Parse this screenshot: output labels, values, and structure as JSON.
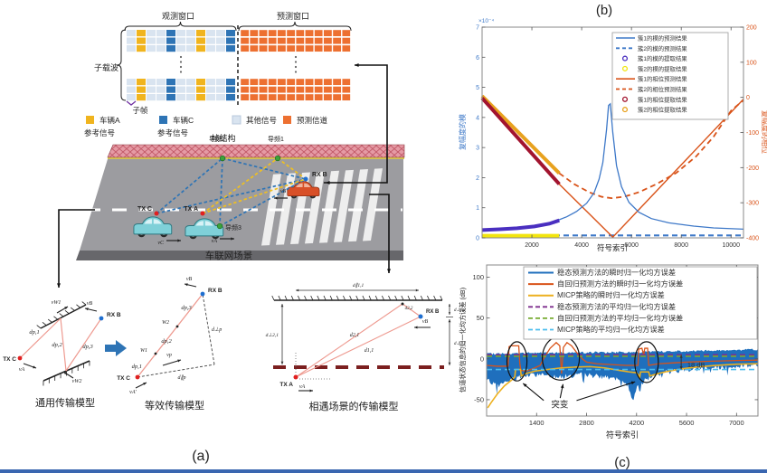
{
  "panel_a": {
    "label": "(a)",
    "frame": {
      "obs_window": "观测窗口",
      "pred_window": "预测窗口",
      "subcarrier": "子载波",
      "subframe": "子帧",
      "frame_structure": "帧结构",
      "obs_pattern": [
        "other",
        "A",
        "other",
        "other",
        "C",
        "other",
        "other",
        "A",
        "other",
        "other",
        "C"
      ],
      "pred_cols": 12,
      "colors": {
        "A": "#F0B41E",
        "C": "#2E74B5",
        "other": "#D9E4F0",
        "pred": "#ED7031"
      }
    },
    "legend": [
      {
        "text": "车辆A",
        "text2": "参考信号",
        "color": "#F0B41E"
      },
      {
        "text": "车辆C",
        "text2": "参考信号",
        "color": "#2E74B5"
      },
      {
        "text": "其他信号",
        "text2": "",
        "color": "#D9E4F0"
      },
      {
        "text": "预测信道",
        "text2": "",
        "color": "#ED7031"
      }
    ],
    "scene": {
      "caption": "车联网场景",
      "pilot1": "导频1",
      "pilot2": "导频2",
      "pilot3": "导频3",
      "tx_c": "TX C",
      "tx_a": "TX A",
      "rx_b": "RX B",
      "v_a": "vA",
      "v_b": "vB",
      "v_c": "vC"
    },
    "model_general": {
      "caption": "通用传输模型",
      "tx": "TX C",
      "rx": "RX B",
      "d1": "dp,1",
      "d2": "dp,2",
      "d3": "dp,3",
      "va": "vA",
      "vb": "vB",
      "vw1": "vW1",
      "vw2": "vW2"
    },
    "model_equiv": {
      "caption": "等效传输模型",
      "tx": "TX C",
      "rx": "RX B",
      "w1": "W1",
      "w2": "W2",
      "d1": "dp,1",
      "d2": "dp,2",
      "d3": "dp,3",
      "vp": "vp",
      "va": "vA′",
      "vb": "vB",
      "dpar": "d∥p",
      "dperp": "d⊥p"
    },
    "model_encounter": {
      "caption": "相遇场景的传输模型",
      "tx": "TX A",
      "rx": "RX B",
      "va": "vA",
      "vb": "vB",
      "dpar11": "d∥1,1",
      "dperp21": "d⊥2,1",
      "dperp11": "d⊥1,1",
      "dperp12": "d⊥1,2",
      "d21": "d2,1",
      "d11": "d1,1",
      "d22": "d2,2"
    }
  },
  "panel_b": {
    "label": "(b)"
  },
  "panel_c": {
    "label": "(c)"
  },
  "chart_data": [
    {
      "id": "b",
      "type": "line",
      "title": "(b)",
      "xlabel": "符号索引",
      "ylabel_left": "复幅度的模",
      "ylabel_right": "复幅度的相位",
      "y_left_multiplier": "×10⁻⁴",
      "xlim": [
        0,
        10500
      ],
      "xticks": [
        2000,
        4000,
        6000,
        8000,
        10000
      ],
      "ylim_left": [
        0,
        7
      ],
      "yticks_left": [
        0,
        1,
        2,
        3,
        4,
        5,
        6,
        7
      ],
      "ylim_right": [
        -400,
        200
      ],
      "yticks_right": [
        -400,
        -300,
        -200,
        -100,
        0,
        100,
        200
      ],
      "axis_color_left": "#3D78C8",
      "axis_color_right": "#D95319",
      "legend_position": "top-right-inside",
      "series": [
        {
          "name": "簇1的模的预测结果",
          "axis": "left",
          "color": "#3D78C8",
          "style": "solid",
          "width": 1.3,
          "legend_marker": "line",
          "points": [
            [
              0,
              0.28
            ],
            [
              800,
              0.31
            ],
            [
              1600,
              0.35
            ],
            [
              2400,
              0.44
            ],
            [
              3000,
              0.57
            ],
            [
              3400,
              0.7
            ],
            [
              3800,
              0.88
            ],
            [
              4200,
              1.15
            ],
            [
              4500,
              1.5
            ],
            [
              4700,
              1.95
            ],
            [
              4850,
              2.5
            ],
            [
              5000,
              3.6
            ],
            [
              5080,
              4.4
            ],
            [
              5150,
              4.45
            ],
            [
              5250,
              3.5
            ],
            [
              5400,
              2.4
            ],
            [
              5600,
              1.7
            ],
            [
              5900,
              1.18
            ],
            [
              6300,
              0.85
            ],
            [
              6800,
              0.64
            ],
            [
              7500,
              0.5
            ],
            [
              8500,
              0.39
            ],
            [
              9300,
              0.33
            ],
            [
              10500,
              0.29
            ]
          ]
        },
        {
          "name": "簇2的模的预测结果",
          "axis": "left",
          "color": "#3D78C8",
          "style": "dashed",
          "width": 2.2,
          "legend_marker": "line",
          "points": [
            [
              0,
              0.08
            ],
            [
              10500,
              0.08
            ]
          ]
        },
        {
          "name": "簇1的模的提取结果",
          "axis": "left",
          "color": "#4A2FC0",
          "style": "solid",
          "width": 4,
          "legend_marker": "circle",
          "points": [
            [
              0,
              0.26
            ],
            [
              700,
              0.285
            ],
            [
              1400,
              0.32
            ],
            [
              2100,
              0.38
            ],
            [
              2700,
              0.47
            ],
            [
              3100,
              0.58
            ]
          ]
        },
        {
          "name": "簇2的模的提取结果",
          "axis": "left",
          "color": "#F2E50E",
          "style": "solid",
          "width": 4,
          "legend_marker": "circle",
          "points": [
            [
              0,
              0.07
            ],
            [
              3100,
              0.07
            ]
          ]
        },
        {
          "name": "簇1的相位预测结果",
          "axis": "right",
          "color": "#D95319",
          "style": "solid",
          "width": 1.4,
          "legend_marker": "line",
          "points": [
            [
              0,
              -2
            ],
            [
              3100,
              -247
            ],
            [
              5250,
              -398
            ],
            [
              10500,
              -5
            ]
          ]
        },
        {
          "name": "簇2的相位预测结果",
          "axis": "right",
          "color": "#D95319",
          "style": "dashed",
          "width": 1.8,
          "legend_marker": "line",
          "points": [
            [
              3100,
              -216
            ],
            [
              3700,
              -247
            ],
            [
              4300,
              -270
            ],
            [
              4800,
              -283
            ],
            [
              5200,
              -287
            ],
            [
              5700,
              -283
            ],
            [
              6300,
              -270
            ],
            [
              7000,
              -247
            ],
            [
              7800,
              -215
            ],
            [
              8600,
              -168
            ],
            [
              9300,
              -112
            ],
            [
              10000,
              -38
            ],
            [
              10500,
              -8
            ]
          ]
        },
        {
          "name": "簇1的相位提取结果",
          "axis": "right",
          "color": "#A2142F",
          "style": "solid",
          "width": 4,
          "legend_marker": "circle",
          "points": [
            [
              0,
              -2
            ],
            [
              3100,
              -247
            ]
          ]
        },
        {
          "name": "簇2的相位提取结果",
          "axis": "right",
          "color": "#E8A21E",
          "style": "solid",
          "width": 4,
          "legend_marker": "circle",
          "points": [
            [
              0,
              4
            ],
            [
              3100,
              -216
            ]
          ]
        }
      ]
    },
    {
      "id": "c",
      "type": "line",
      "title": "(c)",
      "xlabel": "符号索引",
      "ylabel": "信道状态信息的归一化均方误差 (dB)",
      "xlim": [
        0,
        7600
      ],
      "xticks": [
        1400,
        2800,
        4200,
        5600,
        7000
      ],
      "ylim": [
        -70,
        115
      ],
      "yticks": [
        -50,
        0,
        50,
        100
      ],
      "legend_position": "top-right-inside",
      "band": {
        "name": "稳态预测方法的瞬时归一化均方误差",
        "color": "#1F6FBD",
        "upper": [
          [
            0,
            6
          ],
          [
            1000,
            7
          ],
          [
            2000,
            7.5
          ],
          [
            3000,
            8
          ],
          [
            4000,
            8
          ],
          [
            5000,
            9
          ],
          [
            6000,
            10
          ],
          [
            7600,
            11.5
          ]
        ],
        "lower": [
          [
            0,
            -25
          ],
          [
            300,
            -33
          ],
          [
            600,
            -28
          ],
          [
            900,
            -22
          ],
          [
            1500,
            -19
          ],
          [
            2100,
            -22
          ],
          [
            2700,
            -19
          ],
          [
            3300,
            -22
          ],
          [
            3700,
            -26
          ],
          [
            3950,
            -32
          ],
          [
            4080,
            -48
          ],
          [
            4250,
            -30
          ],
          [
            4500,
            -25
          ],
          [
            4800,
            -18
          ],
          [
            5200,
            -15
          ],
          [
            5700,
            -13
          ],
          [
            6200,
            -11
          ],
          [
            7600,
            -8
          ]
        ]
      },
      "series": [
        {
          "name": "自回归预测方法的瞬时归一化均方误差",
          "color": "#D95319",
          "style": "solid",
          "width": 1.3,
          "points": [
            [
              0,
              -8
            ],
            [
              300,
              -9
            ],
            [
              600,
              -9
            ],
            [
              630,
              15
            ],
            [
              680,
              16
            ],
            [
              900,
              16
            ],
            [
              930,
              -6
            ],
            [
              960,
              -14
            ],
            [
              1100,
              -15
            ],
            [
              1300,
              -12
            ],
            [
              1500,
              -8
            ],
            [
              1620,
              2
            ],
            [
              1780,
              13
            ],
            [
              1950,
              20
            ],
            [
              2050,
              16
            ],
            [
              2100,
              -18
            ],
            [
              2150,
              14
            ],
            [
              2250,
              20
            ],
            [
              2380,
              16
            ],
            [
              2520,
              8
            ],
            [
              2680,
              0
            ],
            [
              2800,
              -4
            ],
            [
              3100,
              -6
            ],
            [
              3500,
              -7
            ],
            [
              3900,
              -8
            ],
            [
              4240,
              -8
            ],
            [
              4260,
              12
            ],
            [
              4350,
              13
            ],
            [
              4400,
              5
            ],
            [
              4430,
              13
            ],
            [
              4510,
              13
            ],
            [
              4540,
              -8
            ],
            [
              4800,
              -6
            ],
            [
              5200,
              -5
            ],
            [
              5600,
              -4
            ],
            [
              6200,
              -3
            ],
            [
              7000,
              -2
            ],
            [
              7600,
              -1.5
            ]
          ]
        },
        {
          "name": "MICP策略的瞬时归一化均方误差",
          "color": "#EDB120",
          "style": "solid",
          "width": 1.6,
          "points": [
            [
              30,
              -60
            ],
            [
              120,
              -54
            ],
            [
              300,
              -43
            ],
            [
              500,
              -33
            ],
            [
              700,
              -26
            ],
            [
              790,
              -22
            ],
            [
              810,
              -13
            ],
            [
              950,
              -13
            ],
            [
              970,
              -21
            ],
            [
              1100,
              -18
            ],
            [
              1350,
              -15
            ],
            [
              1700,
              -13
            ],
            [
              2100,
              -11
            ],
            [
              2500,
              -10
            ],
            [
              2900,
              -9.5
            ],
            [
              3300,
              -11
            ],
            [
              3700,
              -14
            ],
            [
              4000,
              -16
            ],
            [
              4200,
              -17
            ],
            [
              4290,
              -22
            ],
            [
              4310,
              -16
            ],
            [
              4540,
              -16
            ],
            [
              4570,
              -21
            ],
            [
              4800,
              -18
            ],
            [
              5100,
              -15
            ],
            [
              5500,
              -12
            ],
            [
              5900,
              -10
            ],
            [
              6400,
              -8
            ],
            [
              7000,
              -6.5
            ],
            [
              7600,
              -6
            ]
          ]
        },
        {
          "name": "稳态预测方法的平均归一化均方误差",
          "color": "#7E2F8E",
          "style": "dashed",
          "width": 1.6,
          "points": [
            [
              0,
              5
            ],
            [
              7600,
              5
            ]
          ]
        },
        {
          "name": "自回归预测方法的平均归一化均方误差",
          "color": "#77AC30",
          "style": "dashed",
          "width": 1.6,
          "points": [
            [
              0,
              3.2
            ],
            [
              7600,
              3.2
            ]
          ]
        },
        {
          "name": "MICP策略的平均归一化均方误差",
          "color": "#4DBEEE",
          "style": "dashed",
          "width": 1.6,
          "points": [
            [
              0,
              -13
            ],
            [
              7600,
              -13
            ]
          ]
        }
      ],
      "annotations": {
        "ellipses": [
          {
            "cx": 850,
            "cy": -3,
            "rx": 280,
            "ry": 24
          },
          {
            "cx": 2080,
            "cy": 1,
            "rx": 520,
            "ry": 27
          },
          {
            "cx": 4480,
            "cy": -4,
            "rx": 330,
            "ry": 25
          }
        ],
        "mutation_label": {
          "text": "突变",
          "x": 2050,
          "y": -56
        },
        "mutation_arrows": [
          [
            1600,
            -51,
            1020,
            -30
          ],
          [
            2060,
            -48,
            2140,
            -31
          ],
          [
            2520,
            -51,
            4160,
            -28
          ]
        ],
        "gap_label": {
          "text": "18 dB",
          "x": 5620,
          "y": -10
        },
        "gap_arrow": {
          "x": 5450,
          "y1": 5,
          "y2": -13
        }
      }
    }
  ]
}
